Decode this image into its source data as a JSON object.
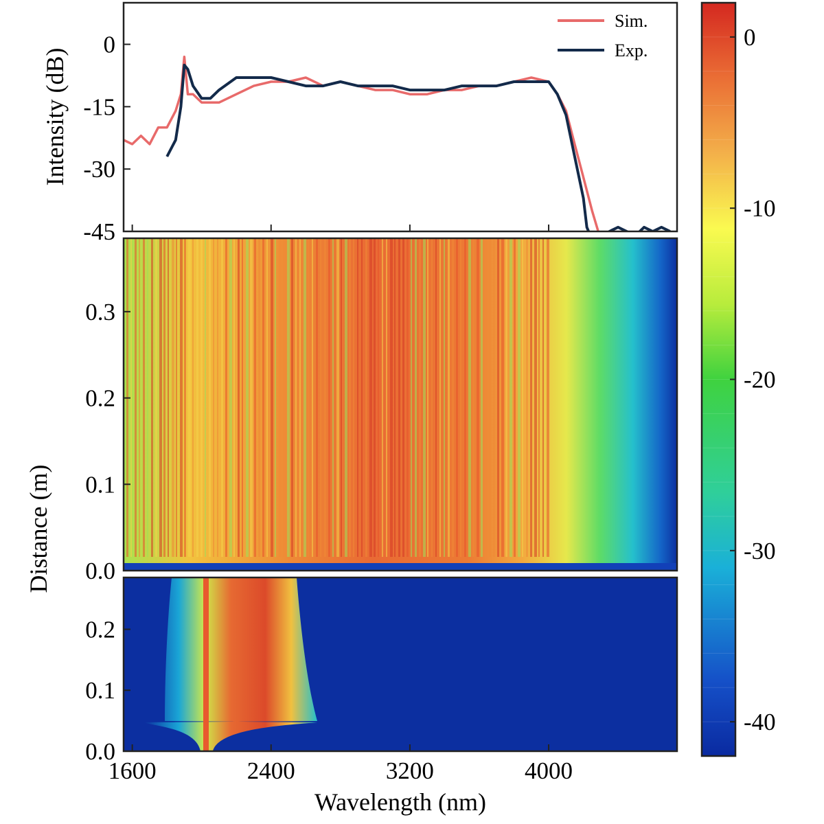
{
  "chart_data": [
    {
      "type": "line",
      "ylabel": "Intensity (dB)",
      "xlim": [
        1550,
        4740
      ],
      "ylim": [
        -45,
        10
      ],
      "yticks": [
        0,
        -15,
        -30,
        -45
      ],
      "ytick_labels": [
        "0",
        "-15",
        "-30",
        "-45"
      ],
      "legend": {
        "position": "top-right"
      },
      "series": [
        {
          "name": "Sim.",
          "color": "#e86a6a",
          "x": [
            1550,
            1600,
            1650,
            1700,
            1750,
            1800,
            1850,
            1880,
            1900,
            1920,
            1950,
            2000,
            2100,
            2200,
            2300,
            2400,
            2500,
            2600,
            2700,
            2800,
            2900,
            3000,
            3100,
            3200,
            3300,
            3400,
            3500,
            3600,
            3700,
            3800,
            3900,
            4000,
            4050,
            4100,
            4150,
            4200,
            4250,
            4300
          ],
          "values": [
            -23,
            -24,
            -22,
            -24,
            -20,
            -20,
            -16,
            -12,
            -3,
            -12,
            -12,
            -14,
            -14,
            -12,
            -10,
            -9,
            -9,
            -8,
            -10,
            -9,
            -10,
            -11,
            -11,
            -12,
            -12,
            -11,
            -11,
            -10,
            -10,
            -9,
            -8,
            -9,
            -12,
            -16,
            -24,
            -32,
            -40,
            -47
          ]
        },
        {
          "name": "Exp.",
          "color": "#132a4a",
          "x": [
            1800,
            1850,
            1880,
            1900,
            1920,
            1950,
            2000,
            2050,
            2100,
            2200,
            2300,
            2400,
            2500,
            2600,
            2700,
            2800,
            2900,
            3000,
            3100,
            3200,
            3300,
            3400,
            3500,
            3600,
            3700,
            3800,
            3900,
            4000,
            4050,
            4100,
            4150,
            4200,
            4220,
            4250,
            4300,
            4350,
            4400,
            4450,
            4500,
            4550,
            4600,
            4650,
            4700
          ],
          "values": [
            -27,
            -23,
            -15,
            -5,
            -6,
            -10,
            -13,
            -13,
            -11,
            -8,
            -8,
            -8,
            -9,
            -10,
            -10,
            -9,
            -10,
            -10,
            -10,
            -11,
            -11,
            -11,
            -10,
            -10,
            -10,
            -9,
            -9,
            -9,
            -12,
            -17,
            -27,
            -37,
            -44,
            -47,
            -47,
            -45,
            -44,
            -45,
            -46,
            -44,
            -45,
            -44,
            -45
          ]
        }
      ]
    },
    {
      "type": "heatmap",
      "ylabel": "Distance (m)",
      "xlim": [
        1550,
        4740
      ],
      "ylim": [
        0.0,
        0.385
      ],
      "yticks": [
        0.0,
        0.1,
        0.2,
        0.3
      ],
      "ytick_labels": [
        "0.0",
        "0.1",
        "0.2",
        "0.3"
      ]
    },
    {
      "type": "heatmap",
      "xlabel": "Wavelength (nm)",
      "xlim": [
        1550,
        4740
      ],
      "ylim": [
        0.0,
        0.285
      ],
      "xticks": [
        1600,
        2400,
        3200,
        4000
      ],
      "xtick_labels": [
        "1600",
        "2400",
        "3200",
        "4000"
      ],
      "yticks": [
        0.0,
        0.1,
        0.2
      ],
      "ytick_labels": [
        "0.0",
        "0.1",
        "0.2"
      ]
    },
    {
      "type": "colorbar",
      "range": [
        -42,
        2
      ],
      "ticks": [
        0,
        -10,
        -20,
        -30,
        -40
      ],
      "tick_labels": [
        "0",
        "-10",
        "-20",
        "-30",
        "-40"
      ]
    }
  ]
}
